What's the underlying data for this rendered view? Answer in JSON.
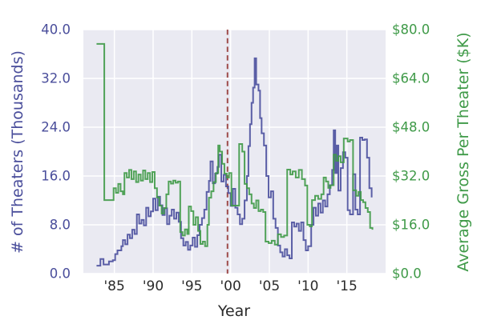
{
  "figure": {
    "background": "#ffffff",
    "plot_background": "#eaeaf2",
    "grid_color": "#ffffff"
  },
  "axes": {
    "x": {
      "label": "Year",
      "color": "#2b2b2b",
      "min": 1981,
      "max": 2020,
      "ticks": [
        {
          "v": 1985,
          "label": "'85"
        },
        {
          "v": 1990,
          "label": "'90"
        },
        {
          "v": 1995,
          "label": "'95"
        },
        {
          "v": 2000,
          "label": "'00"
        },
        {
          "v": 2005,
          "label": "'05"
        },
        {
          "v": 2010,
          "label": "'10"
        },
        {
          "v": 2015,
          "label": "'15"
        }
      ]
    },
    "y_left": {
      "label": "# of Theaters (Thousands)",
      "color": "#4a4e9b",
      "min": 0,
      "max": 40,
      "ticks": [
        {
          "v": 0,
          "label": "0.0"
        },
        {
          "v": 8,
          "label": "8.0"
        },
        {
          "v": 16,
          "label": "16.0"
        },
        {
          "v": 24,
          "label": "24.0"
        },
        {
          "v": 32,
          "label": "32.0"
        },
        {
          "v": 40,
          "label": "40.0"
        }
      ]
    },
    "y_right": {
      "label": "Average Gross Per Theater ($K)",
      "color": "#3f9a48",
      "min": 0,
      "max": 80,
      "ticks": [
        {
          "v": 0,
          "label": "$0.0"
        },
        {
          "v": 16,
          "label": "$16.0"
        },
        {
          "v": 32,
          "label": "$32.0"
        },
        {
          "v": 48,
          "label": "$48.0"
        },
        {
          "v": 64,
          "label": "$64.0"
        },
        {
          "v": 80,
          "label": "$80.0"
        }
      ]
    }
  },
  "chart_data": {
    "type": "line",
    "step": "post",
    "grid": true,
    "legend": "none",
    "xlabel": "Year",
    "xlim": [
      1981,
      2020
    ],
    "annotations": [
      {
        "type": "vline",
        "x": 1999.6,
        "color": "#9e4b4b",
        "style": "dashed",
        "width": 2
      }
    ],
    "series": [
      {
        "name": "# of Theaters (Thousands)",
        "axis": "left",
        "color": "#4a4f9d",
        "ylim": [
          0,
          40
        ],
        "points": [
          [
            1982.7,
            1.3
          ],
          [
            1983.2,
            2.4
          ],
          [
            1983.6,
            1.5
          ],
          [
            1984.3,
            2.0
          ],
          [
            1984.8,
            2.2
          ],
          [
            1985.1,
            3.2
          ],
          [
            1985.4,
            3.8
          ],
          [
            1985.9,
            4.5
          ],
          [
            1986.1,
            5.5
          ],
          [
            1986.4,
            4.8
          ],
          [
            1986.7,
            6.4
          ],
          [
            1987.0,
            5.8
          ],
          [
            1987.3,
            7.2
          ],
          [
            1987.6,
            6.5
          ],
          [
            1987.9,
            9.7
          ],
          [
            1988.2,
            8.2
          ],
          [
            1988.5,
            8.8
          ],
          [
            1988.8,
            7.9
          ],
          [
            1989.1,
            10.8
          ],
          [
            1989.4,
            9.4
          ],
          [
            1989.7,
            10.2
          ],
          [
            1990.0,
            12.3
          ],
          [
            1990.3,
            10.4
          ],
          [
            1990.6,
            12.6
          ],
          [
            1990.9,
            11.2
          ],
          [
            1991.2,
            9.6
          ],
          [
            1991.5,
            10.7
          ],
          [
            1991.8,
            8.1
          ],
          [
            1992.1,
            9.5
          ],
          [
            1992.4,
            10.5
          ],
          [
            1992.7,
            9.0
          ],
          [
            1993.0,
            10.0
          ],
          [
            1993.3,
            8.5
          ],
          [
            1993.6,
            5.8
          ],
          [
            1993.9,
            4.6
          ],
          [
            1994.2,
            5.2
          ],
          [
            1994.5,
            3.9
          ],
          [
            1994.8,
            4.6
          ],
          [
            1995.1,
            5.9
          ],
          [
            1995.4,
            4.4
          ],
          [
            1995.7,
            6.3
          ],
          [
            1996.0,
            8.0
          ],
          [
            1996.3,
            9.1
          ],
          [
            1996.6,
            10.5
          ],
          [
            1996.9,
            13.4
          ],
          [
            1997.2,
            15.2
          ],
          [
            1997.4,
            18.4
          ],
          [
            1997.7,
            14.8
          ],
          [
            1998.0,
            16.4
          ],
          [
            1998.3,
            17.5
          ],
          [
            1998.5,
            19.5
          ],
          [
            1998.8,
            15.1
          ],
          [
            1999.1,
            16.2
          ],
          [
            1999.4,
            14.3
          ],
          [
            1999.7,
            13.2
          ],
          [
            2000.0,
            11.1
          ],
          [
            2000.3,
            13.9
          ],
          [
            2000.6,
            10.8
          ],
          [
            2000.9,
            9.7
          ],
          [
            2001.2,
            8.1
          ],
          [
            2001.5,
            9.0
          ],
          [
            2001.8,
            12.0
          ],
          [
            2002.1,
            16.0
          ],
          [
            2002.3,
            20.9
          ],
          [
            2002.5,
            24.5
          ],
          [
            2002.7,
            28.0
          ],
          [
            2002.9,
            30.5
          ],
          [
            2003.1,
            35.3
          ],
          [
            2003.3,
            31.0
          ],
          [
            2003.6,
            30.0
          ],
          [
            2003.8,
            25.5
          ],
          [
            2004.0,
            23.0
          ],
          [
            2004.3,
            21.0
          ],
          [
            2004.6,
            16.0
          ],
          [
            2004.9,
            12.5
          ],
          [
            2005.2,
            13.5
          ],
          [
            2005.5,
            9.0
          ],
          [
            2005.8,
            7.5
          ],
          [
            2006.1,
            4.6
          ],
          [
            2006.4,
            3.5
          ],
          [
            2006.7,
            2.8
          ],
          [
            2007.0,
            4.0
          ],
          [
            2007.3,
            3.0
          ],
          [
            2007.6,
            2.5
          ],
          [
            2007.9,
            8.4
          ],
          [
            2008.2,
            7.7
          ],
          [
            2008.5,
            8.2
          ],
          [
            2008.8,
            7.0
          ],
          [
            2009.1,
            8.4
          ],
          [
            2009.4,
            5.5
          ],
          [
            2009.7,
            3.8
          ],
          [
            2010.0,
            4.5
          ],
          [
            2010.4,
            8.0
          ],
          [
            2010.7,
            10.8
          ],
          [
            2011.0,
            9.5
          ],
          [
            2011.3,
            11.5
          ],
          [
            2011.6,
            10.0
          ],
          [
            2011.9,
            12.0
          ],
          [
            2012.2,
            11.0
          ],
          [
            2012.5,
            13.0
          ],
          [
            2012.8,
            14.5
          ],
          [
            2013.1,
            17.0
          ],
          [
            2013.3,
            23.5
          ],
          [
            2013.5,
            16.5
          ],
          [
            2013.7,
            21.0
          ],
          [
            2013.9,
            13.6
          ],
          [
            2014.2,
            17.3
          ],
          [
            2014.5,
            19.9
          ],
          [
            2014.8,
            19.0
          ],
          [
            2015.1,
            10.4
          ],
          [
            2015.4,
            9.7
          ],
          [
            2015.8,
            16.3
          ],
          [
            2016.1,
            10.5
          ],
          [
            2016.4,
            9.7
          ],
          [
            2016.7,
            22.3
          ],
          [
            2017.0,
            21.9
          ],
          [
            2017.3,
            22.0
          ],
          [
            2017.6,
            19.0
          ],
          [
            2017.9,
            14.0
          ],
          [
            2018.2,
            12.5
          ]
        ]
      },
      {
        "name": "Average Gross Per Theater ($K)",
        "axis": "right",
        "color": "#3f9a47",
        "ylim": [
          0,
          80
        ],
        "points": [
          [
            1982.7,
            75.3
          ],
          [
            1983.7,
            24.1
          ],
          [
            1984.9,
            28.0
          ],
          [
            1985.2,
            26.5
          ],
          [
            1985.5,
            29.4
          ],
          [
            1985.8,
            27.0
          ],
          [
            1986.1,
            26.0
          ],
          [
            1986.3,
            33.0
          ],
          [
            1986.6,
            31.5
          ],
          [
            1986.9,
            34.0
          ],
          [
            1987.2,
            31.0
          ],
          [
            1987.5,
            33.5
          ],
          [
            1987.8,
            30.0
          ],
          [
            1988.1,
            32.5
          ],
          [
            1988.4,
            30.5
          ],
          [
            1988.7,
            33.8
          ],
          [
            1989.0,
            31.0
          ],
          [
            1989.3,
            33.0
          ],
          [
            1989.6,
            30.0
          ],
          [
            1989.9,
            33.3
          ],
          [
            1990.2,
            28.0
          ],
          [
            1990.5,
            25.0
          ],
          [
            1990.8,
            22.3
          ],
          [
            1991.1,
            19.7
          ],
          [
            1991.4,
            21.5
          ],
          [
            1991.7,
            26.0
          ],
          [
            1992.0,
            30.2
          ],
          [
            1992.3,
            29.5
          ],
          [
            1992.6,
            30.5
          ],
          [
            1992.9,
            29.8
          ],
          [
            1993.2,
            30.2
          ],
          [
            1993.5,
            13.6
          ],
          [
            1993.8,
            12.5
          ],
          [
            1994.1,
            14.5
          ],
          [
            1994.4,
            13.0
          ],
          [
            1994.6,
            22.0
          ],
          [
            1994.9,
            20.5
          ],
          [
            1995.2,
            16.0
          ],
          [
            1995.5,
            18.5
          ],
          [
            1995.8,
            14.0
          ],
          [
            1996.1,
            9.7
          ],
          [
            1996.4,
            10.5
          ],
          [
            1996.7,
            9.0
          ],
          [
            1997.0,
            16.0
          ],
          [
            1997.2,
            24.9
          ],
          [
            1997.5,
            27.0
          ],
          [
            1997.8,
            30.0
          ],
          [
            1998.1,
            33.0
          ],
          [
            1998.4,
            42.0
          ],
          [
            1998.6,
            40.0
          ],
          [
            1998.9,
            36.0
          ],
          [
            1999.2,
            32.8
          ],
          [
            1999.5,
            31.5
          ],
          [
            1999.8,
            33.0
          ],
          [
            2000.1,
            22.3
          ],
          [
            2001.1,
            42.5
          ],
          [
            2001.5,
            40.0
          ],
          [
            2001.8,
            29.4
          ],
          [
            2002.1,
            28.0
          ],
          [
            2002.4,
            26.0
          ],
          [
            2002.7,
            23.0
          ],
          [
            2003.0,
            21.5
          ],
          [
            2003.3,
            24.0
          ],
          [
            2003.6,
            20.5
          ],
          [
            2003.9,
            21.0
          ],
          [
            2004.2,
            20.2
          ],
          [
            2004.5,
            10.5
          ],
          [
            2004.9,
            10.0
          ],
          [
            2005.3,
            10.8
          ],
          [
            2005.7,
            9.5
          ],
          [
            2006.1,
            12.9
          ],
          [
            2006.5,
            12.0
          ],
          [
            2006.9,
            12.5
          ],
          [
            2007.3,
            34.1
          ],
          [
            2007.7,
            32.5
          ],
          [
            2008.0,
            33.5
          ],
          [
            2008.4,
            31.5
          ],
          [
            2008.8,
            34.0
          ],
          [
            2009.2,
            31.0
          ],
          [
            2009.6,
            28.9
          ],
          [
            2009.9,
            16.0
          ],
          [
            2010.2,
            15.5
          ],
          [
            2010.5,
            24.1
          ],
          [
            2010.9,
            25.5
          ],
          [
            2011.3,
            24.5
          ],
          [
            2011.7,
            26.0
          ],
          [
            2012.0,
            31.5
          ],
          [
            2012.3,
            30.2
          ],
          [
            2012.6,
            28.1
          ],
          [
            2012.9,
            29.0
          ],
          [
            2013.3,
            39.0
          ],
          [
            2013.6,
            37.0
          ],
          [
            2013.9,
            38.5
          ],
          [
            2014.2,
            36.5
          ],
          [
            2014.6,
            44.3
          ],
          [
            2015.1,
            43.3
          ],
          [
            2015.4,
            43.8
          ],
          [
            2015.8,
            27.3
          ],
          [
            2016.2,
            25.5
          ],
          [
            2016.5,
            26.8
          ],
          [
            2016.8,
            24.1
          ],
          [
            2017.1,
            23.4
          ],
          [
            2017.4,
            21.5
          ],
          [
            2017.7,
            20.2
          ],
          [
            2018.0,
            15.0
          ],
          [
            2018.3,
            14.4
          ]
        ]
      }
    ]
  }
}
